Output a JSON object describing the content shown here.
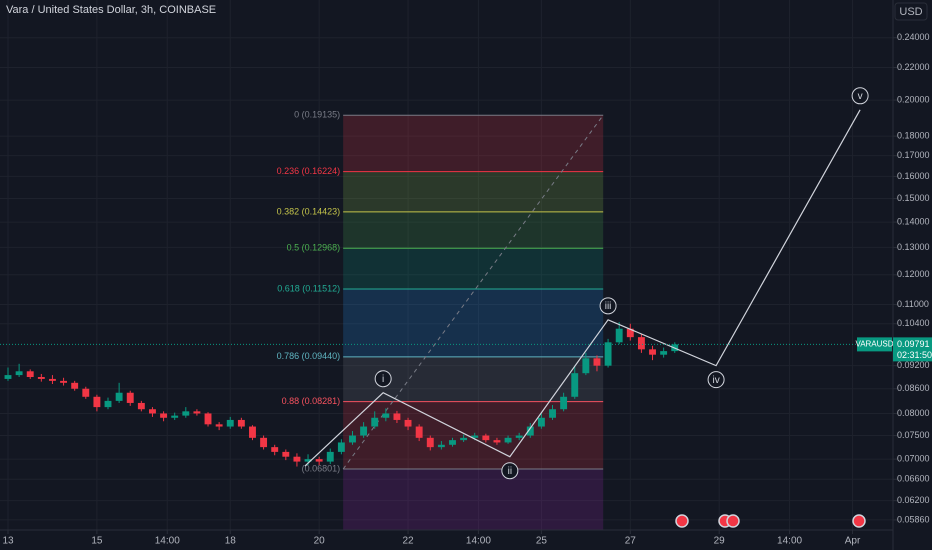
{
  "chart_data": {
    "type": "candlestick",
    "title": "Vara / United States Dollar, 3h, COINBASE",
    "currency_label": "USD",
    "log_scale": true,
    "grid": true,
    "up_color": "#089981",
    "down_color": "#f23645",
    "x": [
      13,
      13.25,
      13.5,
      13.75,
      14,
      14.25,
      14.5,
      14.75,
      15,
      15.25,
      15.5,
      15.75,
      16,
      16.25,
      16.5,
      16.75,
      17,
      17.25,
      17.5,
      17.75,
      18,
      18.25,
      18.5,
      18.75,
      19,
      19.25,
      19.5,
      19.75,
      20,
      20.25,
      20.5,
      20.75,
      21,
      21.25,
      21.5,
      21.75,
      22,
      22.25,
      22.5,
      22.75,
      23,
      23.25,
      23.5,
      23.75,
      24,
      24.25,
      24.5,
      24.75,
      25,
      25.25,
      25.5,
      25.75,
      26,
      26.25,
      26.5,
      26.75,
      27,
      27.25,
      27.5,
      27.75,
      28
    ],
    "open": [
      0.0885,
      0.0895,
      0.0905,
      0.089,
      0.0885,
      0.088,
      0.0875,
      0.086,
      0.084,
      0.0815,
      0.083,
      0.085,
      0.0825,
      0.081,
      0.08,
      0.079,
      0.0795,
      0.0805,
      0.08,
      0.0775,
      0.077,
      0.0785,
      0.077,
      0.0745,
      0.0725,
      0.0715,
      0.0705,
      0.0695,
      0.07,
      0.0695,
      0.0715,
      0.0735,
      0.075,
      0.077,
      0.079,
      0.08,
      0.0785,
      0.077,
      0.0745,
      0.0725,
      0.073,
      0.074,
      0.0745,
      0.075,
      0.074,
      0.0735,
      0.0745,
      0.075,
      0.077,
      0.079,
      0.081,
      0.084,
      0.09,
      0.094,
      0.092,
      0.0985,
      0.1025,
      0.1,
      0.0965,
      0.095,
      0.096
    ],
    "high": [
      0.0915,
      0.0925,
      0.091,
      0.0898,
      0.0895,
      0.0888,
      0.088,
      0.0865,
      0.0845,
      0.0838,
      0.0875,
      0.0855,
      0.083,
      0.0815,
      0.0805,
      0.0802,
      0.0815,
      0.081,
      0.0803,
      0.078,
      0.0792,
      0.079,
      0.0773,
      0.075,
      0.073,
      0.072,
      0.0712,
      0.071,
      0.0705,
      0.0722,
      0.0742,
      0.076,
      0.078,
      0.0805,
      0.0812,
      0.0806,
      0.079,
      0.0775,
      0.075,
      0.0738,
      0.0745,
      0.0752,
      0.0756,
      0.0754,
      0.0745,
      0.075,
      0.0756,
      0.0778,
      0.08,
      0.082,
      0.085,
      0.092,
      0.0955,
      0.0948,
      0.0995,
      0.1045,
      0.104,
      0.101,
      0.0975,
      0.097,
      0.0985
    ],
    "low": [
      0.088,
      0.089,
      0.0885,
      0.0878,
      0.0872,
      0.0868,
      0.0855,
      0.0835,
      0.0805,
      0.081,
      0.0825,
      0.0818,
      0.0805,
      0.0792,
      0.0782,
      0.0785,
      0.079,
      0.0795,
      0.077,
      0.0762,
      0.0765,
      0.0765,
      0.074,
      0.072,
      0.0708,
      0.0698,
      0.0685,
      0.0688,
      0.0688,
      0.069,
      0.071,
      0.073,
      0.0745,
      0.0765,
      0.0782,
      0.0778,
      0.0762,
      0.0738,
      0.0718,
      0.072,
      0.0726,
      0.0736,
      0.074,
      0.0735,
      0.073,
      0.0732,
      0.074,
      0.0745,
      0.0765,
      0.0785,
      0.0805,
      0.0835,
      0.0895,
      0.0905,
      0.0915,
      0.098,
      0.099,
      0.0955,
      0.0935,
      0.0942,
      0.0955
    ],
    "close": [
      0.0895,
      0.0905,
      0.089,
      0.0885,
      0.088,
      0.0875,
      0.086,
      0.084,
      0.0815,
      0.083,
      0.085,
      0.0825,
      0.081,
      0.08,
      0.079,
      0.0795,
      0.0805,
      0.08,
      0.0775,
      0.077,
      0.0785,
      0.077,
      0.0745,
      0.0725,
      0.0715,
      0.0705,
      0.0695,
      0.07,
      0.0695,
      0.0715,
      0.0735,
      0.075,
      0.077,
      0.079,
      0.08,
      0.0785,
      0.077,
      0.0745,
      0.0725,
      0.073,
      0.074,
      0.0745,
      0.075,
      0.074,
      0.0735,
      0.0745,
      0.075,
      0.077,
      0.079,
      0.081,
      0.084,
      0.09,
      0.094,
      0.092,
      0.0985,
      0.1025,
      0.1,
      0.0965,
      0.095,
      0.096,
      0.0979
    ],
    "xlim": [
      12.82,
      32.91
    ],
    "xticks": [
      {
        "value": 13,
        "label": "13"
      },
      {
        "value": 15,
        "label": "15"
      },
      {
        "value": 16.583,
        "label": "14:00"
      },
      {
        "value": 18,
        "label": "18"
      },
      {
        "value": 20,
        "label": "20"
      },
      {
        "value": 22,
        "label": "22"
      },
      {
        "value": 23.583,
        "label": "14:00"
      },
      {
        "value": 25,
        "label": "25"
      },
      {
        "value": 27,
        "label": "27"
      },
      {
        "value": 29,
        "label": "29"
      },
      {
        "value": 30.583,
        "label": "14:00"
      },
      {
        "value": 32,
        "label": "Apr"
      }
    ],
    "ylim": [
      0.0569,
      0.268
    ],
    "yticks": [
      {
        "value": 0.24,
        "label": "0.24000"
      },
      {
        "value": 0.22,
        "label": "0.22000"
      },
      {
        "value": 0.2,
        "label": "0.20000"
      },
      {
        "value": 0.18,
        "label": "0.18000"
      },
      {
        "value": 0.17,
        "label": "0.17000"
      },
      {
        "value": 0.16,
        "label": "0.16000"
      },
      {
        "value": 0.15,
        "label": "0.15000"
      },
      {
        "value": 0.14,
        "label": "0.14000"
      },
      {
        "value": 0.13,
        "label": "0.13000"
      },
      {
        "value": 0.12,
        "label": "0.12000"
      },
      {
        "value": 0.11,
        "label": "0.11000"
      },
      {
        "value": 0.104,
        "label": "0.10400"
      },
      {
        "value": 0.092,
        "label": "0.09200"
      },
      {
        "value": 0.086,
        "label": "0.08600"
      },
      {
        "value": 0.08,
        "label": "0.08000"
      },
      {
        "value": 0.075,
        "label": "0.07500"
      },
      {
        "value": 0.07,
        "label": "0.07000"
      },
      {
        "value": 0.066,
        "label": "0.06600"
      },
      {
        "value": 0.062,
        "label": "0.06200"
      },
      {
        "value": 0.0586,
        "label": "0.05860"
      }
    ],
    "last_price": {
      "symbol": "VARAUSD",
      "value": 0.09791,
      "value_label": "0.09791",
      "countdown": "02:31:50",
      "color": "#089981"
    },
    "fib": {
      "x_start": 20.54,
      "x_end": 26.39,
      "levels": [
        {
          "price": 0.19135,
          "label": "0 (0.19135)",
          "color": "#787b86",
          "fill": "#f23645"
        },
        {
          "price": 0.16224,
          "label": "0.236 (0.16224)",
          "color": "#f23645",
          "fill": "#8bc34a"
        },
        {
          "price": 0.14423,
          "label": "0.382 (0.14423)",
          "color": "#c3c34a",
          "fill": "#4caf50"
        },
        {
          "price": 0.12968,
          "label": "0.5 (0.12968)",
          "color": "#4caf50",
          "fill": "#089981"
        },
        {
          "price": 0.11512,
          "label": "0.618 (0.11512)",
          "color": "#22ab94",
          "fill": "#2196f3"
        },
        {
          "price": 0.0944,
          "label": "0.786 (0.09440)",
          "color": "#5fb4c0",
          "fill": "#787b86"
        },
        {
          "price": 0.08281,
          "label": "0.88 (0.08281)",
          "color": "#f7525f",
          "fill": "#f23645"
        },
        {
          "price": 0.06801,
          "label": "(0.06801)",
          "color": "#787b86",
          "fill": "#9c27b0"
        }
      ]
    },
    "wave": {
      "points": [
        {
          "x": 19.68,
          "price": 0.0686
        },
        {
          "x": 21.44,
          "price": 0.085,
          "label": "i"
        },
        {
          "x": 24.29,
          "price": 0.0705,
          "label": "ii"
        },
        {
          "x": 26.5,
          "price": 0.1052,
          "label": "iii"
        },
        {
          "x": 28.93,
          "price": 0.092,
          "label": "iv"
        },
        {
          "x": 32.17,
          "price": 0.1944,
          "label": "v"
        }
      ]
    }
  }
}
